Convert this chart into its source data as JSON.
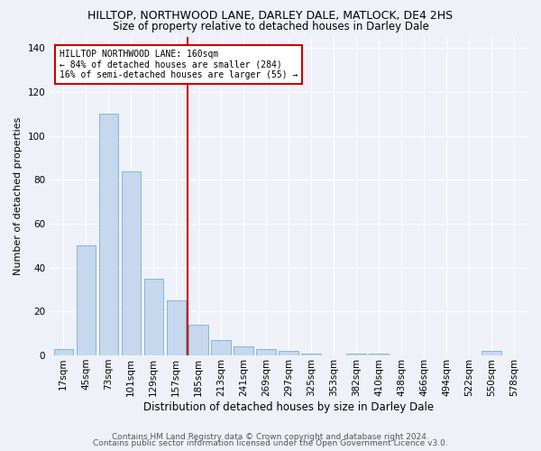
{
  "title": "HILLTOP, NORTHWOOD LANE, DARLEY DALE, MATLOCK, DE4 2HS",
  "subtitle": "Size of property relative to detached houses in Darley Dale",
  "xlabel": "Distribution of detached houses by size in Darley Dale",
  "ylabel": "Number of detached properties",
  "bar_color": "#c5d8ed",
  "bar_edge_color": "#7aaecc",
  "categories": [
    "17sqm",
    "45sqm",
    "73sqm",
    "101sqm",
    "129sqm",
    "157sqm",
    "185sqm",
    "213sqm",
    "241sqm",
    "269sqm",
    "297sqm",
    "325sqm",
    "353sqm",
    "382sqm",
    "410sqm",
    "438sqm",
    "466sqm",
    "494sqm",
    "522sqm",
    "550sqm",
    "578sqm"
  ],
  "values": [
    3,
    50,
    110,
    84,
    35,
    25,
    14,
    7,
    4,
    3,
    2,
    1,
    0,
    1,
    1,
    0,
    0,
    0,
    0,
    2,
    0
  ],
  "ylim": [
    0,
    145
  ],
  "yticks": [
    0,
    20,
    40,
    60,
    80,
    100,
    120,
    140
  ],
  "property_line_x": 5.5,
  "property_line_color": "#cc0000",
  "annotation_text": "HILLTOP NORTHWOOD LANE: 160sqm\n← 84% of detached houses are smaller (284)\n16% of semi-detached houses are larger (55) →",
  "annotation_box_color": "#ffffff",
  "annotation_box_edge_color": "#cc0000",
  "footer1": "Contains HM Land Registry data © Crown copyright and database right 2024.",
  "footer2": "Contains public sector information licensed under the Open Government Licence v3.0.",
  "background_color": "#eef2f8",
  "grid_color": "#ffffff",
  "title_fontsize": 9,
  "subtitle_fontsize": 8.5,
  "ylabel_fontsize": 8,
  "xlabel_fontsize": 8.5,
  "tick_fontsize": 7.5,
  "annotation_fontsize": 7,
  "footer_fontsize": 6.5
}
